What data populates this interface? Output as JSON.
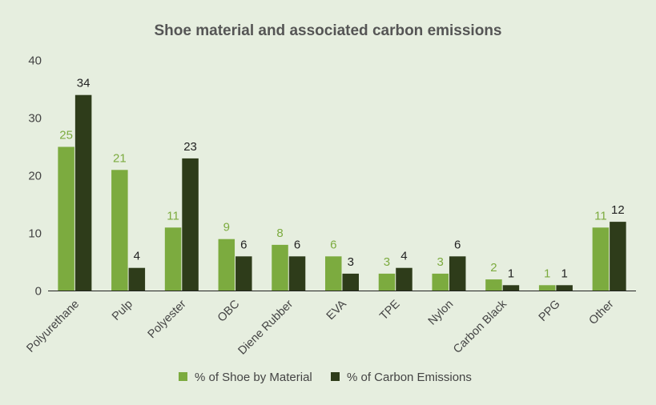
{
  "chart_data": {
    "type": "bar",
    "title": "Shoe material and associated carbon emissions",
    "xlabel": "",
    "ylabel": "",
    "ylim": [
      0,
      40
    ],
    "yticks": [
      0,
      10,
      20,
      30,
      40
    ],
    "grid": false,
    "legend_position": "bottom",
    "categories": [
      "Polyurethane",
      "Pulp",
      "Polyester",
      "OBC",
      "Diene Rubber",
      "EVA",
      "TPE",
      "Nylon",
      "Carbon Black",
      "PPG",
      "Other"
    ],
    "series": [
      {
        "name": "% of Shoe by Material",
        "color": "#7cab3f",
        "values": [
          25,
          21,
          11,
          9,
          8,
          6,
          3,
          3,
          2,
          1,
          11
        ]
      },
      {
        "name": "% of Carbon Emissions",
        "color": "#2e3c1a",
        "values": [
          34,
          4,
          23,
          6,
          6,
          3,
          4,
          6,
          1,
          1,
          12
        ]
      }
    ]
  },
  "colors": {
    "background": "#e6eedf",
    "axis": "#222222",
    "label_text": "#222222"
  }
}
